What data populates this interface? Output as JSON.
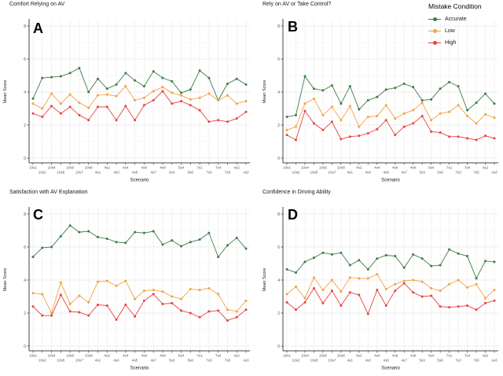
{
  "figure": {
    "background": "#ffffff",
    "grid_color_major": "#e8e8e8",
    "grid_color_minor": "#f5f5f5",
    "grid_color_vertical": "#efefef",
    "axis_spine_color": "#444444",
    "tick_text_color": "#555555"
  },
  "legend": {
    "title": "Mistake Condition",
    "items": [
      {
        "label": "Accurate",
        "color": "#3A7D44"
      },
      {
        "label": "Low",
        "color": "#F1A340"
      },
      {
        "label": "High",
        "color": "#E8423C"
      }
    ]
  },
  "chart_data": {
    "type": "line",
    "xlabel": "Scenario",
    "ylabel": "Mean Score",
    "ylim": [
      0,
      8
    ],
    "y_ticks": [
      0,
      2,
      4,
      6,
      8
    ],
    "grid": true,
    "legend_position": "top-right",
    "categories": [
      "10s1",
      "10s2",
      "10s4",
      "10s5",
      "10s6",
      "10s7",
      "10s8",
      "4s1",
      "4s2",
      "4s3",
      "4s4",
      "4s5",
      "4s6",
      "4s7",
      "4s8",
      "5s3",
      "5s4",
      "5s6",
      "7s1",
      "7s3",
      "7s4",
      "7s5",
      "xs2",
      "xs3"
    ],
    "panels": [
      {
        "tag": "A",
        "title": "Comfort Relying on AV",
        "series": [
          {
            "name": "Accurate",
            "color": "#3A7D44",
            "values": [
              3.6,
              4.85,
              4.9,
              4.95,
              5.15,
              5.45,
              4.0,
              4.8,
              4.2,
              4.45,
              5.15,
              4.7,
              4.35,
              5.25,
              4.85,
              4.65,
              3.95,
              4.15,
              5.3,
              4.85,
              3.5,
              4.5,
              4.8,
              4.45
            ]
          },
          {
            "name": "Low",
            "color": "#F1A340",
            "values": [
              3.3,
              3.0,
              3.9,
              3.3,
              3.85,
              3.35,
              3.05,
              3.8,
              3.85,
              3.75,
              4.35,
              3.5,
              3.65,
              4.05,
              4.3,
              3.95,
              3.8,
              3.55,
              3.65,
              3.9,
              3.5,
              3.8,
              3.3,
              3.45
            ]
          },
          {
            "name": "High",
            "color": "#E8423C",
            "values": [
              2.7,
              2.5,
              3.15,
              2.7,
              3.1,
              2.6,
              2.3,
              3.1,
              3.1,
              2.3,
              3.15,
              2.3,
              3.2,
              3.5,
              4.05,
              3.3,
              3.45,
              3.2,
              2.9,
              2.2,
              2.3,
              2.2,
              2.4,
              2.8
            ]
          }
        ]
      },
      {
        "tag": "B",
        "title": "Rely on AV or Take Control?",
        "series": [
          {
            "name": "Accurate",
            "color": "#3A7D44",
            "values": [
              2.5,
              2.6,
              4.95,
              4.2,
              4.1,
              4.4,
              3.3,
              4.35,
              2.95,
              3.5,
              3.7,
              4.15,
              4.25,
              4.5,
              4.3,
              3.5,
              3.55,
              4.2,
              4.6,
              4.35,
              2.9,
              3.35,
              3.9,
              3.3
            ]
          },
          {
            "name": "Low",
            "color": "#F1A340",
            "values": [
              1.7,
              1.9,
              3.3,
              3.6,
              2.6,
              3.1,
              2.3,
              3.15,
              1.9,
              2.5,
              2.55,
              3.2,
              2.4,
              2.7,
              2.9,
              3.35,
              2.3,
              2.7,
              2.8,
              3.2,
              2.55,
              2.1,
              2.65,
              2.45
            ]
          },
          {
            "name": "High",
            "color": "#E8423C",
            "values": [
              1.4,
              1.1,
              2.85,
              2.1,
              1.7,
              2.2,
              1.15,
              1.3,
              1.35,
              1.5,
              1.75,
              2.3,
              1.4,
              1.9,
              2.1,
              2.55,
              1.6,
              1.55,
              1.3,
              1.3,
              1.2,
              1.1,
              1.35,
              1.2
            ]
          }
        ]
      },
      {
        "tag": "C",
        "title": "Satisfaction with AV Explanation",
        "series": [
          {
            "name": "Accurate",
            "color": "#3A7D44",
            "values": [
              5.4,
              5.95,
              6.0,
              6.65,
              7.3,
              6.9,
              6.95,
              6.6,
              6.5,
              6.3,
              6.25,
              6.9,
              6.85,
              6.95,
              6.15,
              6.4,
              6.05,
              6.3,
              6.45,
              6.85,
              5.4,
              6.1,
              6.55,
              5.9
            ]
          },
          {
            "name": "Low",
            "color": "#F1A340",
            "values": [
              3.2,
              3.15,
              2.0,
              3.85,
              2.55,
              3.05,
              2.65,
              3.9,
              3.95,
              3.65,
              3.95,
              2.85,
              3.35,
              3.4,
              3.3,
              3.0,
              2.85,
              3.45,
              3.4,
              3.5,
              3.15,
              2.2,
              2.1,
              2.75
            ]
          },
          {
            "name": "High",
            "color": "#E8423C",
            "values": [
              2.4,
              1.85,
              1.85,
              3.1,
              2.1,
              2.05,
              1.85,
              2.5,
              2.45,
              1.6,
              2.5,
              1.8,
              2.75,
              3.15,
              2.55,
              2.6,
              2.15,
              2.0,
              1.75,
              2.1,
              2.15,
              1.55,
              1.75,
              2.2
            ]
          }
        ]
      },
      {
        "tag": "D",
        "title": "Confidence in Driving Ability",
        "series": [
          {
            "name": "Accurate",
            "color": "#3A7D44",
            "values": [
              4.65,
              4.45,
              5.1,
              5.35,
              5.65,
              5.55,
              5.65,
              4.9,
              5.2,
              4.65,
              5.3,
              5.5,
              5.45,
              4.75,
              5.55,
              5.3,
              4.85,
              4.9,
              5.85,
              5.6,
              5.45,
              4.1,
              5.15,
              5.1
            ]
          },
          {
            "name": "Low",
            "color": "#F1A340",
            "values": [
              3.15,
              3.6,
              2.9,
              4.15,
              3.4,
              4.0,
              3.3,
              4.15,
              4.1,
              4.1,
              4.35,
              3.45,
              3.75,
              3.95,
              4.0,
              3.9,
              3.5,
              3.35,
              3.75,
              4.0,
              3.55,
              3.75,
              2.9,
              3.4
            ]
          },
          {
            "name": "High",
            "color": "#E8423C",
            "values": [
              2.65,
              2.2,
              2.65,
              3.5,
              2.6,
              3.35,
              2.45,
              3.25,
              3.1,
              1.95,
              3.4,
              2.45,
              3.35,
              3.8,
              3.25,
              3.0,
              3.05,
              2.4,
              2.35,
              2.4,
              2.45,
              2.2,
              2.6,
              2.75
            ]
          }
        ]
      }
    ]
  }
}
